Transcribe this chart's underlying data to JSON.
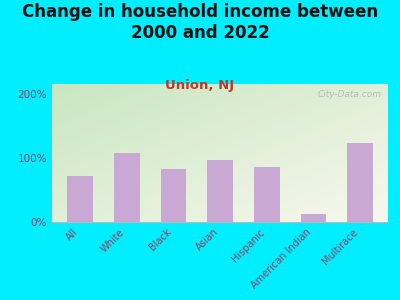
{
  "title": "Change in household income between\n2000 and 2022",
  "subtitle": "Union, NJ",
  "categories": [
    "All",
    "White",
    "Black",
    "Asian",
    "Hispanic",
    "American Indian",
    "Multirace"
  ],
  "values": [
    72,
    107,
    82,
    97,
    85,
    12,
    123
  ],
  "bar_color": "#c9a8d4",
  "title_fontsize": 12,
  "subtitle_fontsize": 9.5,
  "ylabel_ticks": [
    0,
    100,
    200
  ],
  "ylabel_labels": [
    "0%",
    "100%",
    "200%"
  ],
  "ylim": [
    0,
    215
  ],
  "bg_outer": "#00eeff",
  "bg_inner_topleft": "#c8e6c0",
  "bg_inner_bottomright": "#f8f8ee",
  "watermark": "City-Data.com",
  "tick_label_color": "#8b4060",
  "title_color": "#111111",
  "subtitle_color": "#c0392b"
}
